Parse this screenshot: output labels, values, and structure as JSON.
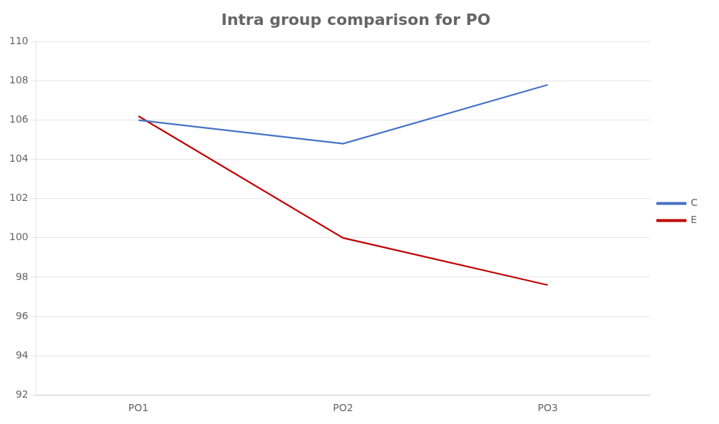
{
  "chart_data": {
    "type": "line",
    "title": "Intra group comparison for PO",
    "categories": [
      "PO1",
      "PO2",
      "PO3"
    ],
    "series": [
      {
        "name": "C",
        "color": "#4472c4",
        "values": [
          106.0,
          104.8,
          107.8
        ]
      },
      {
        "name": "E",
        "color": "#c00000",
        "values": [
          106.2,
          100.0,
          97.6
        ]
      }
    ],
    "ylim": [
      92,
      110
    ],
    "yticks": [
      92,
      94,
      96,
      98,
      100,
      102,
      104,
      106,
      108,
      110
    ],
    "grid": true,
    "legend": "right"
  }
}
